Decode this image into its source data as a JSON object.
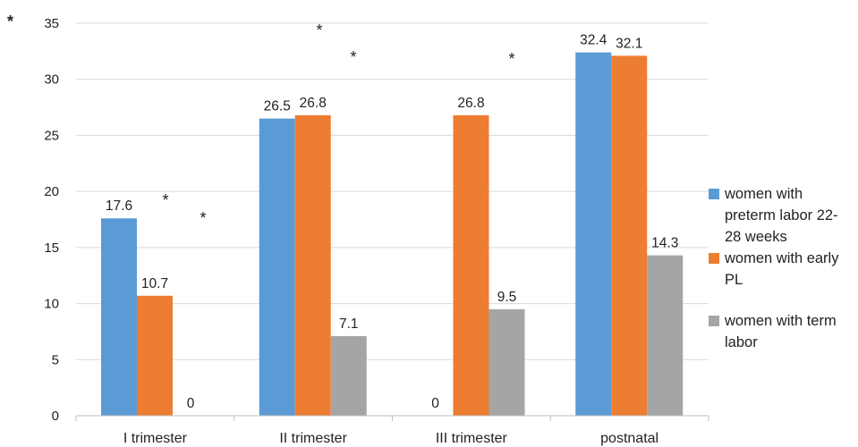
{
  "chart_data": {
    "type": "bar",
    "categories": [
      "I trimester",
      "II trimester",
      "III trimester",
      "postnatal"
    ],
    "series": [
      {
        "name": "women with preterm labor 22-28 weeks",
        "color": "#5B9BD5",
        "values": [
          17.6,
          26.5,
          0,
          32.4
        ]
      },
      {
        "name": "women with early PL",
        "color": "#ED7D31",
        "values": [
          10.7,
          26.8,
          26.8,
          32.1
        ]
      },
      {
        "name": "women with term labor",
        "color": "#A5A5A5",
        "values": [
          0,
          7.1,
          9.5,
          14.3
        ]
      }
    ],
    "data_labels": [
      [
        "17.6",
        "26.5",
        "0",
        "32.4"
      ],
      [
        "10.7",
        "26.8",
        "26.8",
        "32.1"
      ],
      [
        "0",
        "7.1",
        "9.5",
        "14.3"
      ]
    ],
    "yticks": [
      "0",
      "5",
      "10",
      "15",
      "20",
      "25",
      "30",
      "35"
    ],
    "ylim": [
      0,
      35
    ],
    "grid": true,
    "legend_position": "right",
    "annotations": [
      "*",
      "*",
      "*",
      "*",
      "*",
      "*"
    ],
    "y_axis_marker": "*"
  }
}
